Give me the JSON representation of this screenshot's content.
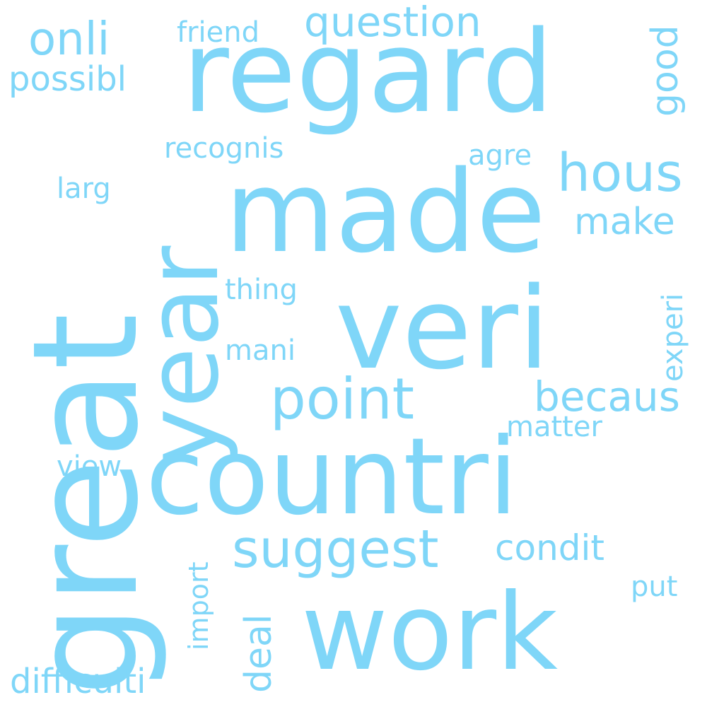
{
  "color": "#7fd6f8",
  "words": {
    "great": "great",
    "regard": "regard",
    "made": "made",
    "year": "year",
    "veri": "veri",
    "countri": "countri",
    "work": "work",
    "point": "point",
    "suggest": "suggest",
    "hous": "hous",
    "onli": "onli",
    "question": "question",
    "friend": "friend",
    "possibl": "possibl",
    "good": "good",
    "recognis": "recognis",
    "agre": "agre",
    "larg": "larg",
    "make": "make",
    "thing": "thing",
    "experi": "experi",
    "mani": "mani",
    "becaus": "becaus",
    "matter": "matter",
    "view": "view",
    "condit": "condit",
    "import": "import",
    "deal": "deal",
    "put": "put",
    "difficulti": "difficulti"
  }
}
